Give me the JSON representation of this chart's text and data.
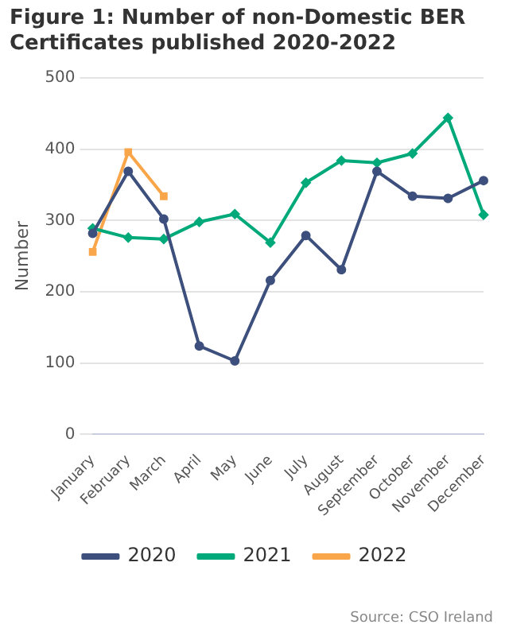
{
  "chart_data": {
    "type": "line",
    "title": "Figure 1: Number of non-Domestic BER Certificates published 2020-2022",
    "ylabel": "Number",
    "categories": [
      "January",
      "February",
      "March",
      "April",
      "May",
      "June",
      "July",
      "August",
      "September",
      "October",
      "November",
      "December"
    ],
    "series": [
      {
        "name": "2020",
        "color": "#3d4f7c",
        "marker": "circle",
        "values": [
          282,
          369,
          302,
          124,
          103,
          216,
          279,
          231,
          369,
          334,
          331,
          356
        ]
      },
      {
        "name": "2021",
        "color": "#00a97a",
        "marker": "diamond",
        "values": [
          289,
          276,
          274,
          298,
          309,
          269,
          353,
          384,
          381,
          394,
          444,
          308
        ]
      },
      {
        "name": "2022",
        "color": "#f9a54a",
        "marker": "square",
        "values": [
          256,
          396,
          334,
          null,
          null,
          null,
          null,
          null,
          null,
          null,
          null,
          null
        ]
      }
    ],
    "ylim": [
      0,
      500
    ],
    "yticks": [
      0,
      100,
      200,
      300,
      400,
      500
    ],
    "grid": "y",
    "legend": "bottom",
    "line_style": "solid",
    "annotations": [
      "Source: CSO Ireland"
    ]
  }
}
